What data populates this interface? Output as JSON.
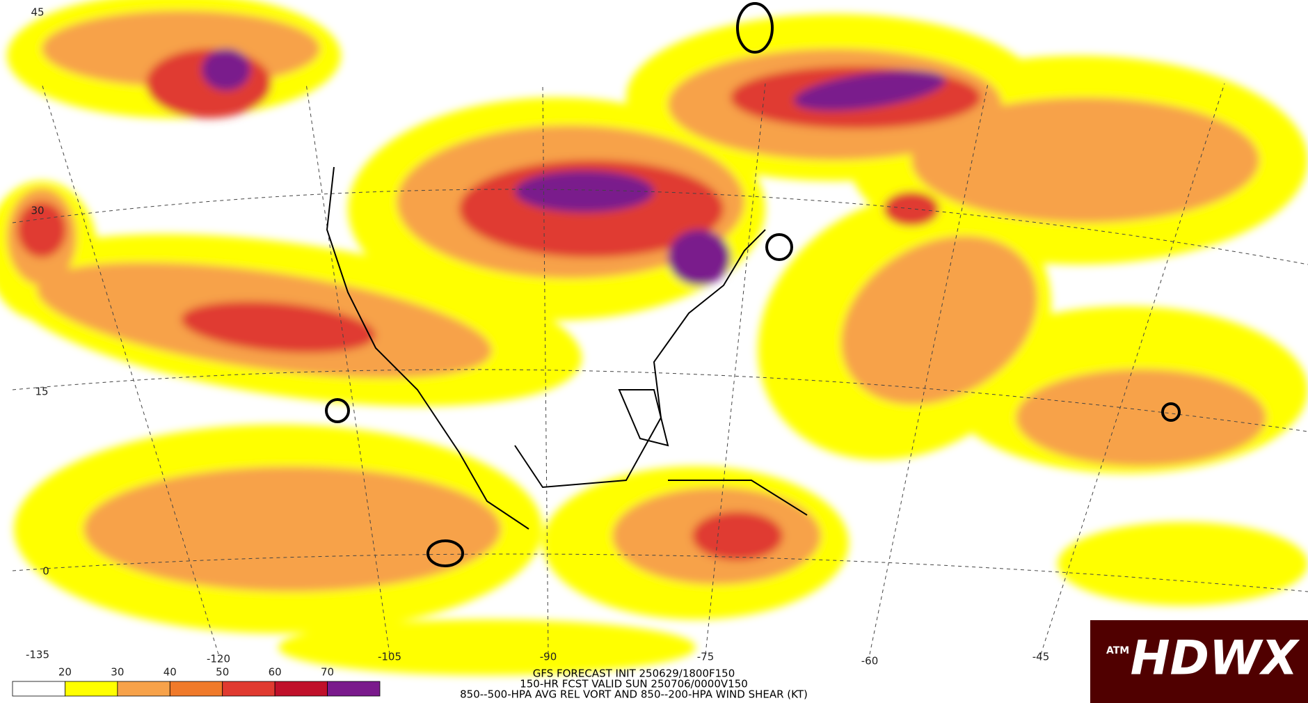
{
  "map": {
    "lat_labels": [
      "45",
      "30",
      "15",
      "0"
    ],
    "lon_labels": [
      "-135",
      "-120",
      "-105",
      "-90",
      "-75",
      "-60",
      "-45"
    ]
  },
  "colorbar": {
    "labels": [
      "20",
      "30",
      "40",
      "50",
      "60",
      "70"
    ],
    "colors": [
      "#ffffff",
      "#ffff00",
      "#f7a24a",
      "#f07a2a",
      "#e03a30",
      "#c0102a",
      "#7a1a8c"
    ]
  },
  "caption": [
    "GFS FORECAST INIT 250629/1800F150",
    "150-HR FCST VALID SUN 250706/0000V150",
    "850--500-HPA AVG REL VORT AND 850--200-HPA WIND SHEAR (KT)"
  ],
  "logo": {
    "badge": "ATM",
    "text": "HDWX"
  }
}
